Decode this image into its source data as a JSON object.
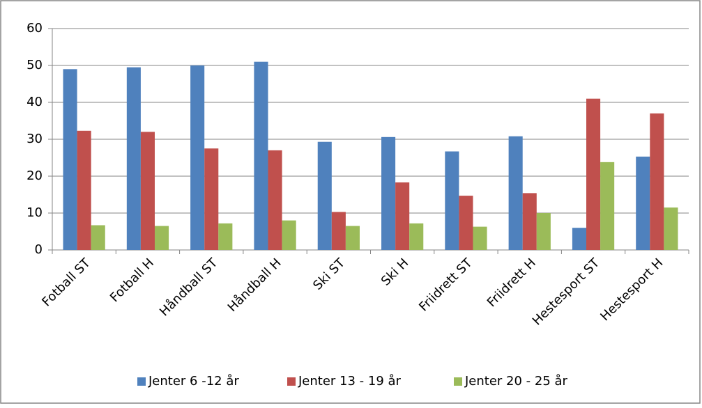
{
  "chart_data": {
    "type": "bar",
    "categories": [
      "Fotball ST",
      "Fotball H",
      "Håndball ST",
      "Håndball H",
      "Ski ST",
      "Ski H",
      "Friidrett ST",
      "Friidrett H",
      "Hestesport ST",
      "Hestesport H"
    ],
    "series": [
      {
        "name": "Jenter 6 -12 år",
        "color": "#4f81bd",
        "values": [
          49,
          49.5,
          50,
          51,
          29.3,
          30.6,
          26.7,
          30.8,
          6,
          25.3
        ]
      },
      {
        "name": "Jenter 13 - 19 år",
        "color": "#c0504d",
        "values": [
          32.3,
          32,
          27.5,
          27,
          10.3,
          18.3,
          14.7,
          15.4,
          41,
          37
        ]
      },
      {
        "name": "Jenter 20 - 25 år",
        "color": "#9bbb59",
        "values": [
          6.7,
          6.5,
          7.2,
          8,
          6.5,
          7.2,
          6.3,
          10,
          23.8,
          11.5
        ]
      }
    ],
    "ylim": [
      0,
      60
    ],
    "yticks": [
      0,
      10,
      20,
      30,
      40,
      50,
      60
    ],
    "grid": true,
    "legend": "bottom"
  }
}
